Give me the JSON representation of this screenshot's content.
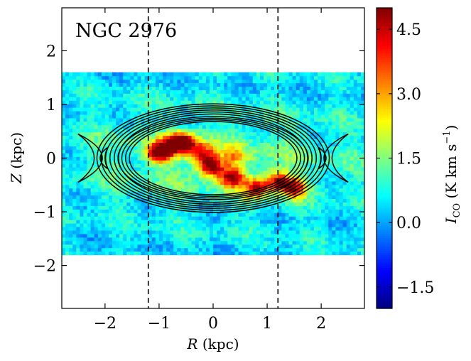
{
  "chart_data": {
    "type": "heatmap",
    "title": "NGC 2976",
    "xlabel_var": "R",
    "xlabel_unit": " (kpc)",
    "ylabel_var": "Z",
    "ylabel_unit": " (kpc)",
    "xlim": [
      -2.8,
      2.8
    ],
    "ylim": [
      -2.8,
      2.8
    ],
    "data_extent": {
      "x": [
        -2.8,
        2.8
      ],
      "z": [
        -1.8,
        1.6
      ]
    },
    "xticks": [
      -2,
      -1,
      0,
      1,
      2
    ],
    "yticks": [
      -2,
      -1,
      0,
      1,
      2
    ],
    "xtick_labels": [
      "−2",
      "−1",
      "0",
      "1",
      "2"
    ],
    "ytick_labels": [
      "−2",
      "−1",
      "0",
      "1",
      "2"
    ],
    "dashed_lines_x": [
      -1.2,
      1.2
    ],
    "colorbar": {
      "label_var": "I",
      "label_sub": "CO",
      "label_unit": " (K km s",
      "label_exp": "−1",
      "label_close": ")",
      "range": [
        -2.0,
        5.0
      ],
      "ticks": [
        -1.5,
        0.0,
        1.5,
        3.0,
        4.5
      ],
      "tick_labels": [
        "−1.5",
        "0.0",
        "1.5",
        "3.0",
        "4.5"
      ],
      "colormap": "jet"
    },
    "emission_peaks": [
      {
        "x": -1.0,
        "z": 0.12,
        "amp": 4.8
      },
      {
        "x": -0.7,
        "z": 0.28,
        "amp": 3.8
      },
      {
        "x": -0.5,
        "z": 0.3,
        "amp": 3.2
      },
      {
        "x": -0.2,
        "z": 0.12,
        "amp": 2.6
      },
      {
        "x": -0.05,
        "z": -0.15,
        "amp": 4.3
      },
      {
        "x": 0.35,
        "z": -0.35,
        "amp": 4.0
      },
      {
        "x": 0.8,
        "z": -0.55,
        "amp": 3.5
      },
      {
        "x": 1.2,
        "z": -0.42,
        "amp": 3.6
      },
      {
        "x": 1.5,
        "z": -0.55,
        "amp": 3.5
      },
      {
        "x": 0.4,
        "z": 0.05,
        "amp": 1.5
      }
    ],
    "contours": {
      "rings_a": [
        2.15,
        2.07,
        1.99,
        1.91,
        1.83,
        1.75
      ],
      "ring_axis_ratio": 0.47,
      "inner_rings_a": [
        1.55,
        1.62,
        1.69,
        1.76
      ],
      "crescent_x": [
        -1.95,
        1.95
      ],
      "crescent_z_half": 0.45
    }
  }
}
